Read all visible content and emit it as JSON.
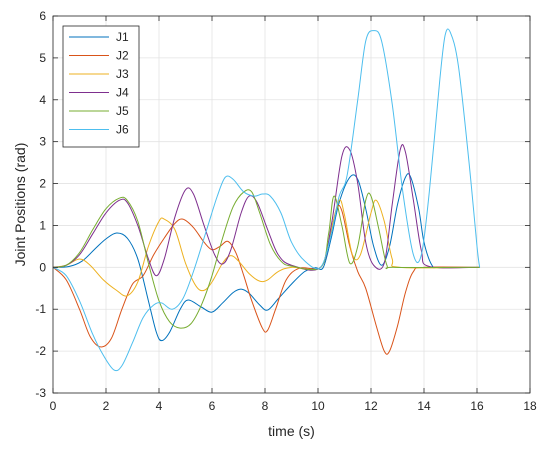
{
  "chart_data": {
    "type": "line",
    "xlabel": "time (s)",
    "ylabel": "Joint Positions (rad)",
    "xlim": [
      0,
      18
    ],
    "ylim": [
      -3,
      6
    ],
    "xticks": [
      0,
      2,
      4,
      6,
      8,
      10,
      12,
      14,
      16,
      18
    ],
    "yticks": [
      -3,
      -2,
      -1,
      0,
      1,
      2,
      3,
      4,
      5,
      6
    ],
    "grid": true,
    "legend_position": "top-left",
    "series": [
      {
        "name": "J1",
        "color": "#0072BD",
        "points": [
          [
            0,
            0
          ],
          [
            0.6,
            0.02
          ],
          [
            1.1,
            0.15
          ],
          [
            1.6,
            0.45
          ],
          [
            2.0,
            0.68
          ],
          [
            2.4,
            0.82
          ],
          [
            2.8,
            0.7
          ],
          [
            3.2,
            0.2
          ],
          [
            3.6,
            -0.8
          ],
          [
            3.9,
            -1.55
          ],
          [
            4.1,
            -1.75
          ],
          [
            4.4,
            -1.55
          ],
          [
            4.8,
            -1.0
          ],
          [
            5.1,
            -0.78
          ],
          [
            5.6,
            -0.95
          ],
          [
            6.0,
            -1.07
          ],
          [
            6.4,
            -0.85
          ],
          [
            6.8,
            -0.6
          ],
          [
            7.1,
            -0.52
          ],
          [
            7.4,
            -0.62
          ],
          [
            7.8,
            -0.9
          ],
          [
            8.1,
            -1.02
          ],
          [
            8.5,
            -0.75
          ],
          [
            9.0,
            -0.4
          ],
          [
            9.5,
            -0.1
          ],
          [
            9.9,
            -0.01
          ],
          [
            10.2,
            0
          ],
          [
            10.5,
            0.7
          ],
          [
            10.8,
            1.55
          ],
          [
            11.2,
            2.15
          ],
          [
            11.5,
            2.1
          ],
          [
            11.8,
            1.4
          ],
          [
            12.1,
            0.5
          ],
          [
            12.4,
            0.05
          ],
          [
            12.7,
            0.5
          ],
          [
            13.0,
            1.5
          ],
          [
            13.3,
            2.15
          ],
          [
            13.5,
            2.15
          ],
          [
            13.8,
            1.4
          ],
          [
            14.0,
            0.6
          ],
          [
            14.3,
            0.05
          ],
          [
            14.6,
            0
          ],
          [
            16.1,
            0
          ]
        ]
      },
      {
        "name": "J2",
        "color": "#D95319",
        "points": [
          [
            0,
            0
          ],
          [
            0.5,
            -0.3
          ],
          [
            1.0,
            -1.0
          ],
          [
            1.4,
            -1.65
          ],
          [
            1.8,
            -1.9
          ],
          [
            2.2,
            -1.7
          ],
          [
            2.6,
            -1.0
          ],
          [
            3.0,
            -0.4
          ],
          [
            3.4,
            -0.2
          ],
          [
            3.8,
            0.3
          ],
          [
            4.2,
            0.7
          ],
          [
            4.6,
            1.05
          ],
          [
            4.9,
            1.15
          ],
          [
            5.3,
            0.95
          ],
          [
            5.7,
            0.6
          ],
          [
            6.0,
            0.42
          ],
          [
            6.3,
            0.5
          ],
          [
            6.6,
            0.62
          ],
          [
            6.9,
            0.35
          ],
          [
            7.2,
            -0.2
          ],
          [
            7.5,
            -0.8
          ],
          [
            7.9,
            -1.45
          ],
          [
            8.1,
            -1.5
          ],
          [
            8.4,
            -1.0
          ],
          [
            8.8,
            -0.3
          ],
          [
            9.3,
            -0.02
          ],
          [
            10.1,
            0
          ],
          [
            10.4,
            0.6
          ],
          [
            10.7,
            1.4
          ],
          [
            10.9,
            1.35
          ],
          [
            11.2,
            0.5
          ],
          [
            11.5,
            -0.1
          ],
          [
            11.8,
            -0.5
          ],
          [
            12.2,
            -1.4
          ],
          [
            12.5,
            -2.0
          ],
          [
            12.7,
            -2.0
          ],
          [
            13.0,
            -1.4
          ],
          [
            13.3,
            -0.6
          ],
          [
            13.6,
            -0.1
          ],
          [
            14.0,
            0
          ],
          [
            16.1,
            0
          ]
        ]
      },
      {
        "name": "J3",
        "color": "#EDB120",
        "points": [
          [
            0,
            0
          ],
          [
            0.5,
            0.05
          ],
          [
            1.0,
            0.2
          ],
          [
            1.4,
            0.05
          ],
          [
            1.9,
            -0.3
          ],
          [
            2.4,
            -0.55
          ],
          [
            2.8,
            -0.68
          ],
          [
            3.2,
            -0.35
          ],
          [
            3.6,
            0.5
          ],
          [
            4.0,
            1.1
          ],
          [
            4.2,
            1.15
          ],
          [
            4.6,
            0.9
          ],
          [
            5.0,
            0.1
          ],
          [
            5.4,
            -0.45
          ],
          [
            5.7,
            -0.55
          ],
          [
            6.0,
            -0.35
          ],
          [
            6.4,
            0.1
          ],
          [
            6.7,
            0.28
          ],
          [
            7.0,
            0.15
          ],
          [
            7.4,
            -0.15
          ],
          [
            7.8,
            -0.33
          ],
          [
            8.1,
            -0.3
          ],
          [
            8.5,
            -0.1
          ],
          [
            9.0,
            0
          ],
          [
            10.1,
            0
          ],
          [
            10.5,
            0.9
          ],
          [
            10.8,
            1.6
          ],
          [
            11.0,
            1.25
          ],
          [
            11.3,
            0.3
          ],
          [
            11.6,
            0.3
          ],
          [
            12.0,
            1.3
          ],
          [
            12.2,
            1.6
          ],
          [
            12.5,
            1.1
          ],
          [
            12.8,
            0.2
          ],
          [
            13.1,
            0
          ],
          [
            16.1,
            0
          ]
        ]
      },
      {
        "name": "J4",
        "color": "#7E2F8E",
        "points": [
          [
            0,
            0
          ],
          [
            0.5,
            0.05
          ],
          [
            1.0,
            0.3
          ],
          [
            1.5,
            0.8
          ],
          [
            2.0,
            1.3
          ],
          [
            2.5,
            1.6
          ],
          [
            2.8,
            1.55
          ],
          [
            3.2,
            1.0
          ],
          [
            3.6,
            0.2
          ],
          [
            3.9,
            -0.2
          ],
          [
            4.2,
            0.2
          ],
          [
            4.6,
            1.2
          ],
          [
            5.0,
            1.85
          ],
          [
            5.3,
            1.75
          ],
          [
            5.7,
            1.0
          ],
          [
            6.1,
            0.3
          ],
          [
            6.4,
            0.08
          ],
          [
            6.7,
            0.4
          ],
          [
            7.1,
            1.3
          ],
          [
            7.4,
            1.7
          ],
          [
            7.7,
            1.55
          ],
          [
            8.1,
            0.9
          ],
          [
            8.5,
            0.3
          ],
          [
            9.0,
            0.05
          ],
          [
            10.1,
            0
          ],
          [
            10.5,
            1.0
          ],
          [
            10.9,
            2.65
          ],
          [
            11.2,
            2.8
          ],
          [
            11.5,
            2.0
          ],
          [
            11.8,
            0.6
          ],
          [
            12.1,
            0.05
          ],
          [
            12.5,
            0.1
          ],
          [
            12.8,
            1.5
          ],
          [
            13.1,
            2.8
          ],
          [
            13.3,
            2.75
          ],
          [
            13.6,
            1.6
          ],
          [
            13.9,
            0.4
          ],
          [
            14.2,
            0.02
          ],
          [
            16.1,
            0
          ]
        ]
      },
      {
        "name": "J5",
        "color": "#77AC30",
        "points": [
          [
            0,
            0
          ],
          [
            0.5,
            0.05
          ],
          [
            1.0,
            0.35
          ],
          [
            1.5,
            0.9
          ],
          [
            2.0,
            1.4
          ],
          [
            2.5,
            1.65
          ],
          [
            2.8,
            1.6
          ],
          [
            3.2,
            1.1
          ],
          [
            3.6,
            0.1
          ],
          [
            4.0,
            -0.8
          ],
          [
            4.4,
            -1.3
          ],
          [
            4.8,
            -1.45
          ],
          [
            5.2,
            -1.35
          ],
          [
            5.6,
            -0.9
          ],
          [
            6.0,
            -0.2
          ],
          [
            6.4,
            0.7
          ],
          [
            6.8,
            1.45
          ],
          [
            7.2,
            1.8
          ],
          [
            7.5,
            1.8
          ],
          [
            7.8,
            1.3
          ],
          [
            8.2,
            0.55
          ],
          [
            8.6,
            0.15
          ],
          [
            9.0,
            0.03
          ],
          [
            10.1,
            0
          ],
          [
            10.4,
            0.8
          ],
          [
            10.6,
            1.7
          ],
          [
            10.9,
            1.0
          ],
          [
            11.2,
            0.1
          ],
          [
            11.5,
            0.5
          ],
          [
            11.8,
            1.6
          ],
          [
            12.0,
            1.7
          ],
          [
            12.3,
            0.9
          ],
          [
            12.6,
            0.05
          ],
          [
            12.9,
            0
          ],
          [
            16.1,
            0
          ]
        ]
      },
      {
        "name": "J6",
        "color": "#4DBEEE",
        "points": [
          [
            0,
            0
          ],
          [
            0.5,
            -0.2
          ],
          [
            1.0,
            -0.8
          ],
          [
            1.5,
            -1.6
          ],
          [
            1.9,
            -2.1
          ],
          [
            2.3,
            -2.45
          ],
          [
            2.6,
            -2.35
          ],
          [
            3.0,
            -1.8
          ],
          [
            3.4,
            -1.2
          ],
          [
            3.8,
            -0.9
          ],
          [
            4.1,
            -0.85
          ],
          [
            4.5,
            -1.0
          ],
          [
            4.9,
            -0.75
          ],
          [
            5.3,
            -0.1
          ],
          [
            5.8,
            0.9
          ],
          [
            6.2,
            1.7
          ],
          [
            6.5,
            2.15
          ],
          [
            6.8,
            2.1
          ],
          [
            7.2,
            1.8
          ],
          [
            7.6,
            1.7
          ],
          [
            7.9,
            1.75
          ],
          [
            8.2,
            1.7
          ],
          [
            8.6,
            1.3
          ],
          [
            9.0,
            0.6
          ],
          [
            9.5,
            0.15
          ],
          [
            10.1,
            0
          ],
          [
            10.5,
            0.8
          ],
          [
            10.8,
            1.7
          ],
          [
            11.1,
            2.2
          ],
          [
            11.5,
            4.0
          ],
          [
            11.8,
            5.4
          ],
          [
            12.1,
            5.65
          ],
          [
            12.4,
            5.4
          ],
          [
            12.8,
            3.9
          ],
          [
            13.2,
            1.8
          ],
          [
            13.6,
            0.3
          ],
          [
            13.9,
            0.3
          ],
          [
            14.2,
            1.8
          ],
          [
            14.6,
            4.5
          ],
          [
            14.8,
            5.55
          ],
          [
            15.0,
            5.6
          ],
          [
            15.3,
            4.8
          ],
          [
            15.7,
            2.5
          ],
          [
            16.0,
            0.5
          ],
          [
            16.1,
            0
          ]
        ]
      }
    ]
  }
}
